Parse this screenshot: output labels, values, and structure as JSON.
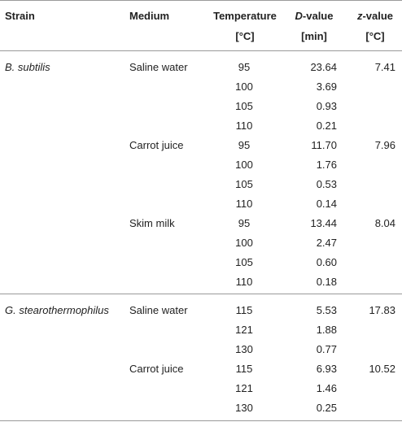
{
  "header": {
    "strain": "Strain",
    "medium": "Medium",
    "temperature": "Temperature",
    "temperature_unit": "[°C]",
    "d_value_letter": "D",
    "d_value_rest": "-value",
    "d_value_unit": "[min]",
    "z_value_letter": "z",
    "z_value_rest": "-value",
    "z_value_unit": "[°C]"
  },
  "rows": [
    {
      "strain": "B. subtilis",
      "medium": "Saline water",
      "temp": "95",
      "d": "23.64",
      "z": "7.41"
    },
    {
      "strain": "",
      "medium": "",
      "temp": "100",
      "d": "3.69",
      "z": ""
    },
    {
      "strain": "",
      "medium": "",
      "temp": "105",
      "d": "0.93",
      "z": ""
    },
    {
      "strain": "",
      "medium": "",
      "temp": "110",
      "d": "0.21",
      "z": ""
    },
    {
      "strain": "",
      "medium": "Carrot juice",
      "temp": "95",
      "d": "11.70",
      "z": "7.96"
    },
    {
      "strain": "",
      "medium": "",
      "temp": "100",
      "d": "1.76",
      "z": ""
    },
    {
      "strain": "",
      "medium": "",
      "temp": "105",
      "d": "0.53",
      "z": ""
    },
    {
      "strain": "",
      "medium": "",
      "temp": "110",
      "d": "0.14",
      "z": ""
    },
    {
      "strain": "",
      "medium": "Skim milk",
      "temp": "95",
      "d": "13.44",
      "z": "8.04"
    },
    {
      "strain": "",
      "medium": "",
      "temp": "100",
      "d": "2.47",
      "z": ""
    },
    {
      "strain": "",
      "medium": "",
      "temp": "105",
      "d": "0.60",
      "z": ""
    },
    {
      "strain": "",
      "medium": "",
      "temp": "110",
      "d": "0.18",
      "z": ""
    },
    {
      "strain": "G. stearothermophilus",
      "medium": "Saline water",
      "temp": "115",
      "d": "5.53",
      "z": "17.83"
    },
    {
      "strain": "",
      "medium": "",
      "temp": "121",
      "d": "1.88",
      "z": ""
    },
    {
      "strain": "",
      "medium": "",
      "temp": "130",
      "d": "0.77",
      "z": ""
    },
    {
      "strain": "",
      "medium": "Carrot juice",
      "temp": "115",
      "d": "6.93",
      "z": "10.52"
    },
    {
      "strain": "",
      "medium": "",
      "temp": "121",
      "d": "1.46",
      "z": ""
    },
    {
      "strain": "",
      "medium": "",
      "temp": "130",
      "d": "0.25",
      "z": ""
    }
  ]
}
